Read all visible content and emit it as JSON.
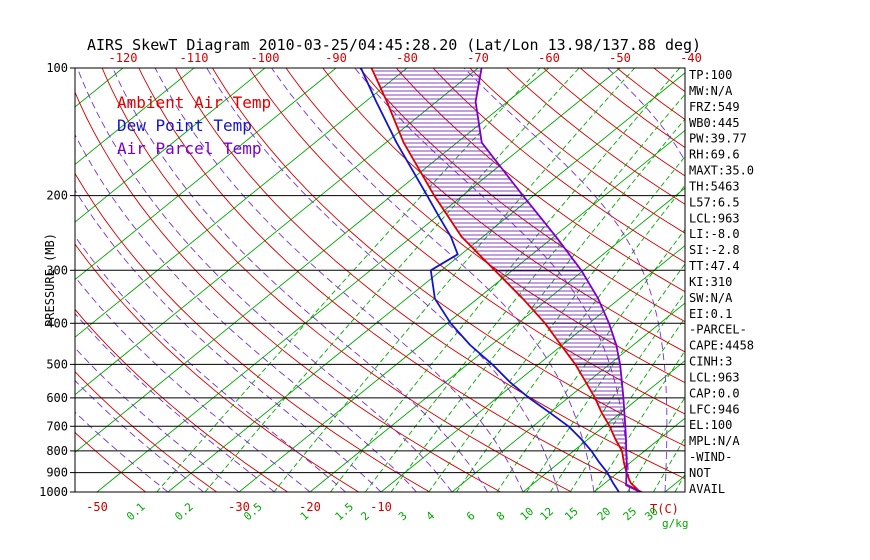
{
  "title": "AIRS SkewT Diagram 2010-03-25/04:45:28.20 (Lat/Lon 13.98/137.88 deg)",
  "legend": [
    {
      "label": "Ambient Air Temp",
      "color": "#dd0000"
    },
    {
      "label": "Dew Point Temp",
      "color": "#1414cc"
    },
    {
      "label": "Air Parcel Temp",
      "color": "#7a00cc"
    }
  ],
  "axes": {
    "pressure_label": "PRESSURE (MB)",
    "pressure_ticks": [
      100,
      200,
      300,
      400,
      500,
      600,
      700,
      800,
      900,
      1000
    ],
    "top_temp_ticks": [
      -120,
      -110,
      -100,
      -90,
      -80,
      -70,
      -60,
      -50,
      -40
    ],
    "bottom_temp_ticks": [
      -50,
      -30,
      -20,
      -10
    ],
    "mixing_ratio_ticks": [
      0.1,
      0.2,
      0.5,
      1,
      1.5,
      2,
      3,
      4,
      6,
      8,
      10,
      12,
      15,
      20,
      25,
      30
    ],
    "temp_unit_label": "T(C)",
    "mixing_unit_label": "g/kg"
  },
  "side_panel": [
    "TP:100",
    "MW:N/A",
    "FRZ:549",
    "WB0:445",
    "PW:39.77",
    "RH:69.6",
    "MAXT:35.0",
    "TH:5463",
    "L57:6.5",
    "LCL:963",
    "LI:-8.0",
    "SI:-2.8",
    "TT:47.4",
    "KI:310",
    "SW:N/A",
    "EI:0.1",
    "-PARCEL-",
    "CAPE:4458",
    "CINH:3",
    "LCL:963",
    "CAP:0.0",
    "LFC:946",
    "EL:100",
    "MPL:N/A",
    "-WIND-",
    "NOT",
    "AVAIL"
  ],
  "colors": {
    "isotherm_green": "#00a800",
    "mixing_green": "#00a800",
    "dry_adiabat_red": "#d40000",
    "moist_adiabat_purple": "#7a30cc",
    "axis_black": "#000000",
    "tick_red": "#d40000",
    "hatch_purple": "#5c00a8",
    "background": "#ffffff"
  },
  "chart_data": {
    "type": "line",
    "variant": "skew-t-log-p",
    "title": "AIRS SkewT Diagram 2010-03-25/04:45:28.20 (Lat/Lon 13.98/137.88 deg)",
    "xlabel": "T(C)",
    "ylabel": "PRESSURE (MB)",
    "pressure_range_mb": [
      100,
      1000
    ],
    "isotherms_c": {
      "min": -130,
      "max": 50,
      "step": 10
    },
    "dry_adiabats_k": {
      "min": 220,
      "max": 450,
      "step": 10
    },
    "moist_adiabats_c": {
      "min": -40,
      "max": 40,
      "step": 5
    },
    "mixing_ratios_gkg": [
      0.1,
      0.2,
      0.5,
      1,
      1.5,
      2,
      3,
      4,
      6,
      8,
      10,
      12,
      15,
      20,
      25,
      30
    ],
    "series": [
      {
        "name": "Ambient Air Temp",
        "color": "#dd0000",
        "points_p_t": [
          [
            1000,
            26.5
          ],
          [
            950,
            23.5
          ],
          [
            900,
            21.2
          ],
          [
            850,
            19.0
          ],
          [
            800,
            16.8
          ],
          [
            750,
            13.8
          ],
          [
            700,
            10.8
          ],
          [
            650,
            7.3
          ],
          [
            600,
            3.8
          ],
          [
            550,
            -0.3
          ],
          [
            500,
            -4.8
          ],
          [
            450,
            -10.2
          ],
          [
            400,
            -16.2
          ],
          [
            350,
            -23.6
          ],
          [
            300,
            -32.5
          ],
          [
            250,
            -43.0
          ],
          [
            200,
            -54.0
          ],
          [
            150,
            -67.5
          ],
          [
            120,
            -77.0
          ],
          [
            100,
            -85.0
          ]
        ]
      },
      {
        "name": "Dew Point Temp",
        "color": "#1414cc",
        "points_p_t": [
          [
            1000,
            23.5
          ],
          [
            950,
            21.0
          ],
          [
            900,
            18.5
          ],
          [
            850,
            15.5
          ],
          [
            800,
            12.5
          ],
          [
            750,
            9.0
          ],
          [
            700,
            5.0
          ],
          [
            650,
            0.0
          ],
          [
            600,
            -5.5
          ],
          [
            550,
            -11.0
          ],
          [
            500,
            -16.5
          ],
          [
            450,
            -23.0
          ],
          [
            400,
            -29.5
          ],
          [
            350,
            -36.0
          ],
          [
            300,
            -41.5
          ],
          [
            275,
            -40.5
          ],
          [
            250,
            -44.5
          ],
          [
            225,
            -49.5
          ],
          [
            200,
            -55.0
          ],
          [
            150,
            -68.5
          ],
          [
            120,
            -78.5
          ],
          [
            100,
            -86.5
          ]
        ]
      },
      {
        "name": "Air Parcel Temp",
        "color": "#7a00cc",
        "points_p_t": [
          [
            1000,
            26.5
          ],
          [
            963,
            23.3
          ],
          [
            950,
            22.9
          ],
          [
            900,
            21.2
          ],
          [
            850,
            19.4
          ],
          [
            800,
            17.4
          ],
          [
            750,
            15.3
          ],
          [
            700,
            13.0
          ],
          [
            650,
            10.5
          ],
          [
            600,
            7.8
          ],
          [
            550,
            4.8
          ],
          [
            500,
            1.5
          ],
          [
            450,
            -2.4
          ],
          [
            400,
            -7.2
          ],
          [
            350,
            -13.0
          ],
          [
            300,
            -20.3
          ],
          [
            250,
            -29.7
          ],
          [
            200,
            -41.5
          ],
          [
            150,
            -56.5
          ],
          [
            120,
            -64.5
          ],
          [
            100,
            -69.5
          ]
        ]
      }
    ],
    "cape_hatch": {
      "between": [
        "Air Parcel Temp",
        "Ambient Air Temp"
      ],
      "from_pressure_mb": 946,
      "to_pressure_mb": 100
    }
  }
}
